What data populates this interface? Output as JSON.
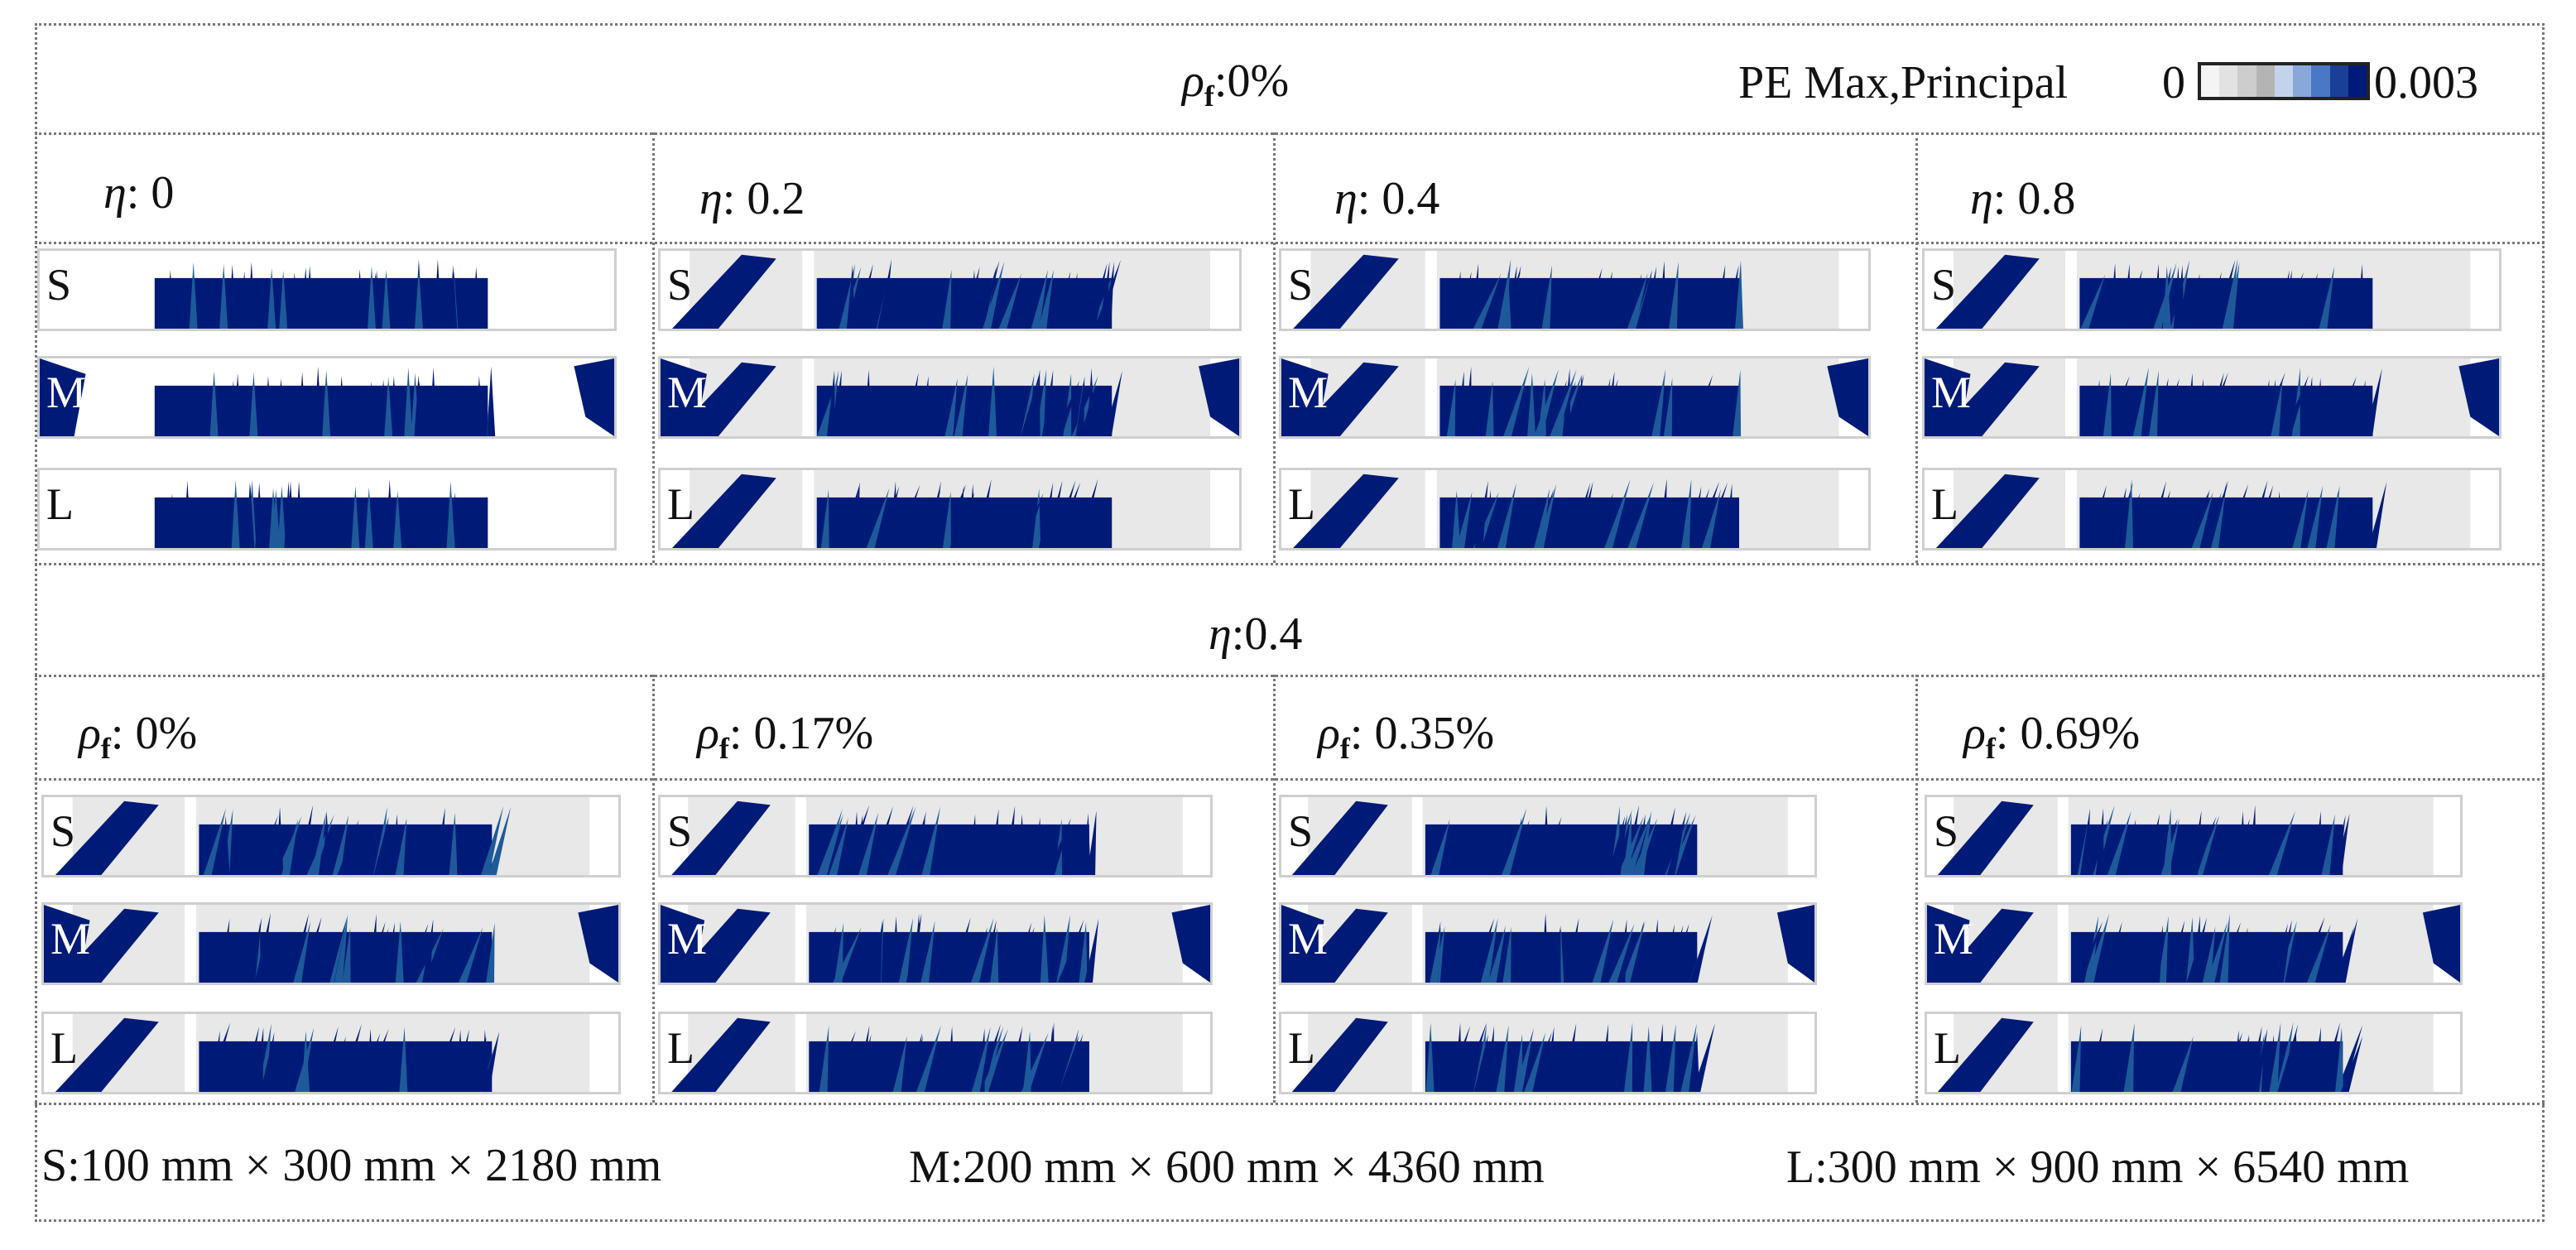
{
  "top_section": {
    "header_symbol": "ρ",
    "header_sub": "f",
    "header_value": ":0%",
    "legend_label": "PE Max,Principal",
    "legend_min": "0",
    "legend_max": "0.003",
    "legend_colors": [
      "#f4f4f4",
      "#e2e2e2",
      "#cdcdcd",
      "#b4b4b4",
      "#c4d3ec",
      "#88a8dc",
      "#4a78c4",
      "#1a3f96",
      "#001a78"
    ],
    "columns": [
      {
        "symbol": "η",
        "value": ": 0"
      },
      {
        "symbol": "η",
        "value": ": 0.2"
      },
      {
        "symbol": "η",
        "value": ": 0.4"
      },
      {
        "symbol": "η",
        "value": ": 0.8"
      }
    ]
  },
  "bottom_section": {
    "header_symbol": "η",
    "header_value": ":0.4",
    "columns": [
      {
        "symbol": "ρ",
        "sub": "f",
        "value": ": 0%"
      },
      {
        "symbol": "ρ",
        "sub": "f",
        "value": ": 0.17%"
      },
      {
        "symbol": "ρ",
        "sub": "f",
        "value": ": 0.35%"
      },
      {
        "symbol": "ρ",
        "sub": "f",
        "value": ": 0.69%"
      }
    ]
  },
  "size_labels": [
    "S",
    "M",
    "L"
  ],
  "footer": {
    "small": "S:100 mm × 300 mm × 2180 mm",
    "medium": "M:200 mm × 600 mm × 4360 mm",
    "large": "L:300 mm × 900 mm × 6540 mm"
  },
  "colors": {
    "damage": "#001a78",
    "damage_mid": "#1e5a9a",
    "grey": "#d6d6d6",
    "border": "#777777"
  }
}
